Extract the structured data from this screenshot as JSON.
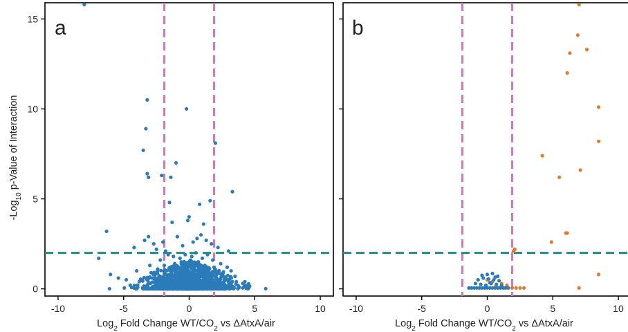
{
  "colors": {
    "series_blue": "#2b7bb9",
    "series_orange": "#e07b2a",
    "cutoff_vertical": "#c97eb8",
    "cutoff_horizontal": "#1a8a8a",
    "axis": "#000000"
  },
  "figure": {
    "shared_ylabel": "-Log10 p-Value of Interaction",
    "ylabel_parts": {
      "pre": "-Log",
      "sub": "10",
      "post": " p-Value of Interaction"
    }
  },
  "chart_data": [
    {
      "type": "scatter",
      "panel_label": "a",
      "xlabel": "Log2 Fold Change WT/CO2 vs ΔAtxA/air",
      "xlabel_parts": {
        "a": "Log",
        "b": "2",
        "c": " Fold Change WT/CO",
        "d": "2",
        "e": " vs ΔAtxA/air"
      },
      "ylabel": "-Log10 p-Value of Interaction",
      "xlim": [
        -11,
        11
      ],
      "ylim": [
        -0.4,
        15.9
      ],
      "xticks": [
        -10,
        -5,
        0,
        5,
        10
      ],
      "yticks": [
        0,
        5,
        10,
        15
      ],
      "fold_change_cutoffs": [
        -1.9,
        1.9
      ],
      "pvalue_cutoff": 2,
      "grid": false,
      "series": [
        {
          "color_key": "series_blue",
          "x": [
            -8.0,
            -3.2,
            -0.2,
            -3.3,
            -3.5,
            -1.0,
            -3.2,
            -3.1,
            -2.1,
            -1.4,
            -1.5,
            1.6,
            3.3,
            -6.3,
            0.8,
            0.0,
            -0.1,
            -1.3,
            1.1,
            2.0,
            -3.1,
            -3.4,
            -2.0,
            -2.7,
            -4.2,
            -0.5,
            0.3,
            0.6,
            1.3,
            -1.8,
            -2.5,
            2.2,
            3.0,
            1.7,
            -0.9,
            0.9,
            -6.9,
            -6.0,
            -5.4,
            -4.8,
            4.4,
            3.6,
            -4.0,
            -3.0,
            -2.2,
            -1.6,
            -1.2,
            -0.7,
            -0.3,
            0.2,
            0.5,
            1.0,
            1.4,
            1.8,
            2.4,
            2.9,
            3.2,
            -2.9,
            -2.4,
            -1.9,
            -1.1,
            -0.6,
            0.1,
            0.7,
            1.2,
            1.9,
            2.6,
            3.5,
            -3.6,
            -2.6,
            -1.7,
            -0.8,
            -0.4,
            0.4,
            0.8,
            1.5,
            2.1,
            2.7,
            4.1,
            -4.5,
            -3.8,
            -2.8,
            -2.3,
            -1.5,
            -1.0,
            -0.2,
            0.3,
            0.6,
            1.1,
            1.6,
            2.3,
            3.1,
            -3.3,
            -2.0,
            -0.9,
            0.0,
            0.9,
            1.7,
            2.5,
            3.8
          ],
          "y": [
            15.8,
            10.5,
            10.0,
            8.9,
            7.7,
            7.0,
            6.4,
            6.2,
            6.3,
            6.2,
            4.8,
            4.9,
            5.4,
            3.2,
            4.7,
            4.0,
            3.8,
            3.7,
            3.6,
            8.1,
            2.9,
            2.7,
            2.6,
            2.5,
            2.3,
            2.4,
            2.6,
            2.8,
            2.7,
            2.1,
            2.2,
            2.3,
            2.1,
            2.5,
            2.9,
            3.0,
            1.7,
            0.8,
            0.6,
            0.5,
            0.2,
            0.4,
            1.0,
            1.3,
            1.6,
            1.9,
            1.8,
            1.7,
            1.9,
            1.8,
            2.0,
            1.7,
            1.9,
            1.6,
            1.4,
            1.2,
            1.0,
            0.9,
            1.1,
            1.3,
            1.4,
            1.5,
            1.6,
            1.5,
            1.3,
            1.2,
            0.9,
            0.7,
            0.5,
            0.8,
            1.0,
            1.2,
            1.1,
            1.2,
            1.1,
            1.0,
            0.8,
            0.6,
            0.3,
            0.2,
            0.4,
            0.6,
            0.7,
            0.8,
            0.9,
            0.9,
            0.8,
            0.7,
            0.6,
            0.7,
            0.5,
            0.3,
            0.1,
            0.3,
            0.5,
            0.4,
            0.4,
            0.3,
            0.2,
            0.1
          ]
        }
      ]
    },
    {
      "type": "scatter",
      "panel_label": "b",
      "xlabel": "Log2 Fold Change WT/CO2 vs ΔAtxA/air",
      "xlabel_parts": {
        "a": "Log",
        "b": "2",
        "c": " Fold Change WT/CO",
        "d": "2",
        "e": " vs ΔAtxA/air"
      },
      "xlim": [
        -11,
        11
      ],
      "ylim": [
        -0.4,
        15.9
      ],
      "xticks": [
        -10,
        -5,
        0,
        5,
        10
      ],
      "yticks": [
        0,
        5,
        10,
        15
      ],
      "fold_change_cutoffs": [
        -1.9,
        1.9
      ],
      "pvalue_cutoff": 2,
      "grid": false,
      "series": [
        {
          "color_key": "series_orange",
          "x": [
            7.0,
            6.9,
            7.6,
            6.3,
            6.1,
            8.5,
            8.5,
            4.2,
            7.1,
            5.5,
            6.1,
            6.0,
            4.9,
            2.1,
            2.0,
            8.5,
            7.0,
            -0.2,
            0.2,
            0.6,
            0.8,
            1.0,
            1.3,
            1.6,
            1.9,
            2.2,
            2.5,
            2.8,
            0.4,
            1.1,
            0.0,
            1.5
          ],
          "y": [
            15.8,
            14.1,
            13.3,
            13.1,
            12.0,
            10.1,
            8.2,
            7.4,
            6.6,
            6.2,
            3.1,
            3.1,
            2.6,
            2.2,
            2.1,
            0.8,
            0.05,
            0.05,
            0.05,
            0.1,
            0.05,
            0.1,
            0.05,
            0.05,
            0.05,
            0.05,
            0.05,
            0.05,
            0.4,
            0.3,
            0.5,
            0.2
          ]
        },
        {
          "color_key": "series_blue",
          "x": [
            -1.4,
            -1.2,
            -1.0,
            -0.8,
            -0.6,
            -0.4,
            -0.2,
            0.0,
            0.2,
            0.4,
            0.6,
            0.8,
            1.0,
            1.2,
            1.4,
            1.6,
            -0.9,
            -0.5,
            -0.1,
            0.3,
            0.7,
            1.1,
            -0.7,
            -0.3,
            0.1,
            0.5,
            0.9,
            -0.4,
            0.0,
            0.4,
            0.8,
            0.2,
            0.6
          ],
          "y": [
            0.05,
            0.05,
            0.05,
            0.05,
            0.05,
            0.05,
            0.05,
            0.05,
            0.05,
            0.05,
            0.05,
            0.05,
            0.05,
            0.05,
            0.05,
            0.05,
            0.3,
            0.25,
            0.2,
            0.3,
            0.25,
            0.2,
            0.5,
            0.6,
            0.55,
            0.5,
            0.45,
            0.75,
            0.8,
            0.85,
            0.7,
            0.35,
            0.65
          ]
        }
      ]
    }
  ]
}
